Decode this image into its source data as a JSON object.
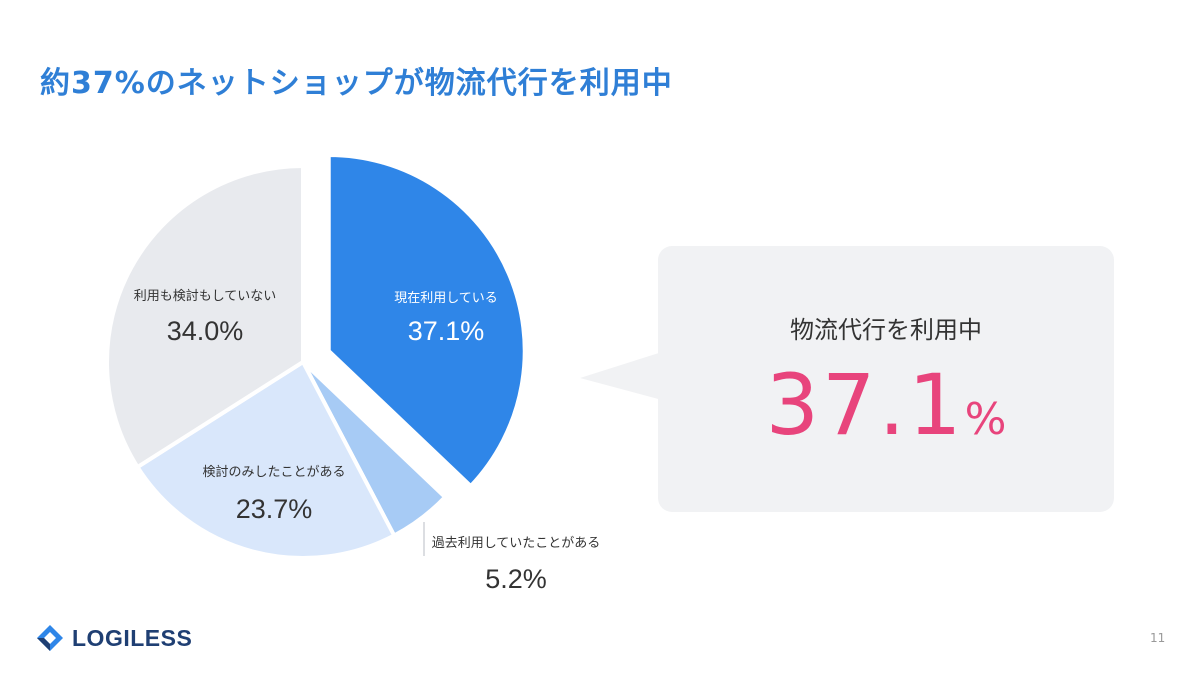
{
  "title": "約37%のネットショップが物流代行を利用中",
  "chart_data": {
    "type": "pie",
    "slices": [
      {
        "label": "現在利用している",
        "value": 37.1,
        "value_text": "37.1%",
        "color": "#2f86e8",
        "exploded": true
      },
      {
        "label": "過去利用していたことがある",
        "value": 5.2,
        "value_text": "5.2%",
        "color": "#a7cbf5",
        "exploded": false
      },
      {
        "label": "検討のみしたことがある",
        "value": 23.7,
        "value_text": "23.7%",
        "color": "#d9e7fb",
        "exploded": false
      },
      {
        "label": "利用も検討もしていない",
        "value": 34.0,
        "value_text": "34.0%",
        "color": "#e8eaee",
        "exploded": false
      }
    ]
  },
  "callout": {
    "label": "物流代行を利用中",
    "value": "37.1",
    "unit": "%"
  },
  "colors": {
    "title": "#2f7fd6",
    "highlight": "#e8447c",
    "callout_bg": "#f1f2f4"
  },
  "logo": {
    "text": "LOGILESS",
    "icon": "diamond-logo-icon"
  },
  "page_number": "11"
}
